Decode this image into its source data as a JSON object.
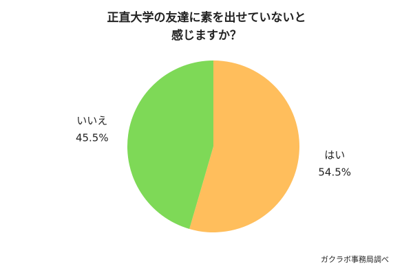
{
  "chart_data": {
    "type": "pie",
    "title": [
      "正直大学の友達に素を出せていないと",
      "感じますか？"
    ],
    "categories": [
      "はい",
      "いいえ"
    ],
    "values": [
      54.5,
      45.5
    ],
    "value_labels": [
      "54.5%",
      "45.5%"
    ],
    "colors": [
      "#ffbe5c",
      "#7ed957"
    ],
    "source": "ガクラボ事務局調べ"
  }
}
